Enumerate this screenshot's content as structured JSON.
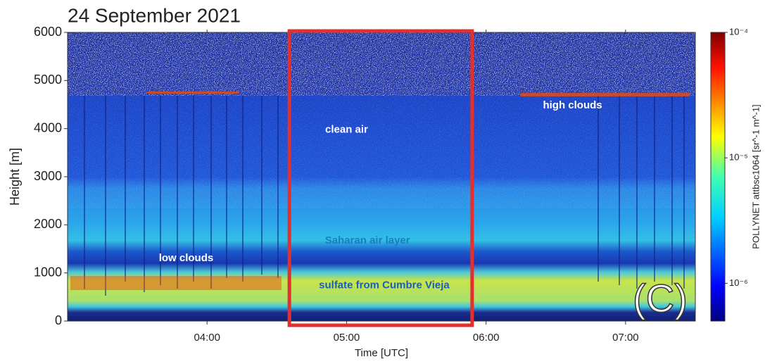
{
  "chart_data": {
    "type": "heatmap",
    "title": "24 September 2021",
    "xlabel": "Time [UTC]",
    "ylabel": "Height [m]",
    "xlim": [
      3.0,
      7.5
    ],
    "xticks": [
      {
        "value": 4,
        "label": "04:00"
      },
      {
        "value": 5,
        "label": "05:00"
      },
      {
        "value": 6,
        "label": "06:00"
      },
      {
        "value": 7,
        "label": "07:00"
      }
    ],
    "ylim": [
      0,
      6000
    ],
    "yticks": [
      0,
      1000,
      2000,
      3000,
      4000,
      5000,
      6000
    ],
    "colorbar": {
      "label": "POLLYNET attbsc1064 [sr^-1 m^-1]",
      "scale": "log",
      "lim": [
        5e-07,
        0.0001
      ],
      "ticks": [
        {
          "value": 0.0001,
          "label": "10⁻⁴"
        },
        {
          "value": 1e-05,
          "label": "10⁻⁵"
        },
        {
          "value": 1e-06,
          "label": "10⁻⁶"
        }
      ]
    },
    "highlight": {
      "x": [
        4.59,
        5.9
      ],
      "color": "#e03030"
    },
    "annotations": [
      {
        "text": "high clouds",
        "x": 6.62,
        "y": 4480,
        "color": "#ffffff"
      },
      {
        "text": "clean air",
        "x": 5.0,
        "y": 3970,
        "color": "#ffffff"
      },
      {
        "text": "Saharan air layer",
        "x": 5.15,
        "y": 1670,
        "color": "#1a7fbf"
      },
      {
        "text": "low clouds",
        "x": 3.85,
        "y": 1300,
        "color": "#ffffff"
      },
      {
        "text": "sulfate from Cumbre Vieja",
        "x": 5.27,
        "y": 740,
        "color": "#1a5fb4"
      }
    ],
    "panel_label": "(C)"
  }
}
